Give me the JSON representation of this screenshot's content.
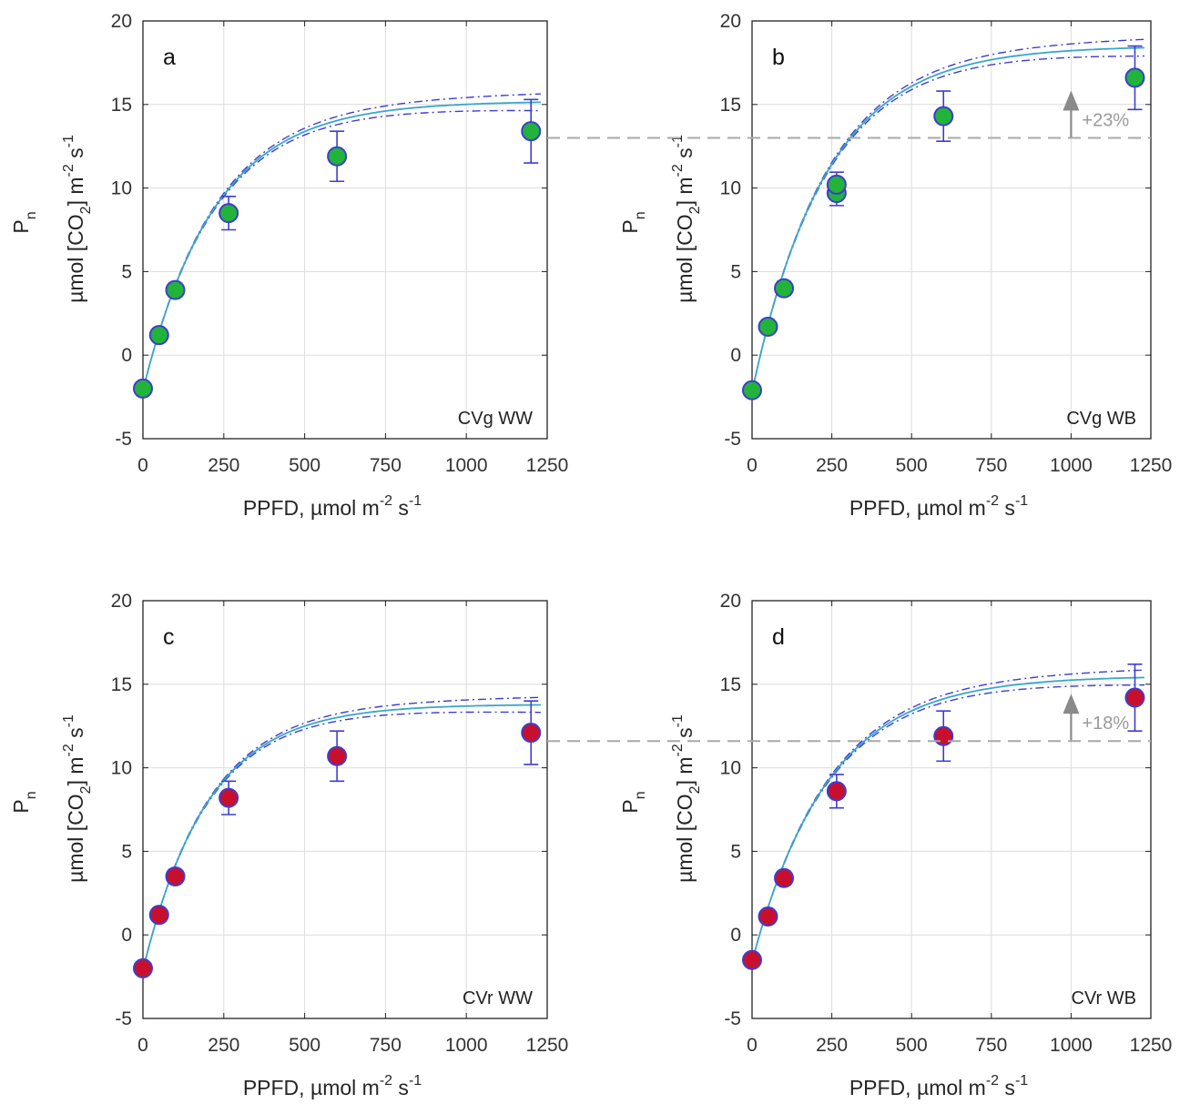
{
  "chart_data": [
    {
      "type": "scatter",
      "panel_letter": "a",
      "label": "CVg WW",
      "marker_color": "#22b33a",
      "x": [
        0,
        50,
        100,
        265,
        600,
        1200
      ],
      "points": [
        {
          "x": 0,
          "y": [
            -2.0
          ],
          "err": 0.3
        },
        {
          "x": 50,
          "y": [
            1.2
          ],
          "err": 0.3
        },
        {
          "x": 100,
          "y": [
            3.9
          ],
          "err": 0.4
        },
        {
          "x": 265,
          "y": [
            8.5
          ],
          "err": 1.0
        },
        {
          "x": 600,
          "y": [
            11.9
          ],
          "err": 1.5
        },
        {
          "x": 1200,
          "y": [
            13.4
          ],
          "err": 1.9
        }
      ],
      "fit": {
        "Pmax": 15.2,
        "Rd": 2.1,
        "k": 0.0045,
        "band": 0.5
      },
      "xticks": [
        "0",
        "250",
        "500",
        "750",
        "1000",
        "1250"
      ],
      "yticks": [
        "-5",
        "0",
        "5",
        "10",
        "15",
        "20"
      ],
      "xlim": [
        0,
        1250
      ],
      "ylim": [
        -5,
        20
      ],
      "xlabel": "PPFD, µmol m",
      "xlabel_sup": "-2",
      "xlabel_tail": " s",
      "xlabel_sup2": "-1",
      "ylabel_main": "µmol [CO",
      "ylabel_sub": "2",
      "ylabel_mid": "] m",
      "ylabel_sup": "-2",
      "ylabel_tail": " s",
      "ylabel_sup2": "-1",
      "ylabel_p": "P",
      "ylabel_p_sub": "n",
      "grid": true
    },
    {
      "type": "scatter",
      "panel_letter": "b",
      "label": "CVg WB",
      "marker_color": "#22b33a",
      "x": [
        0,
        50,
        100,
        265,
        600,
        1200
      ],
      "points": [
        {
          "x": 0,
          "y": [
            -2.1
          ],
          "err": 0.3
        },
        {
          "x": 50,
          "y": [
            1.7
          ],
          "err": 0.3
        },
        {
          "x": 100,
          "y": [
            4.0
          ],
          "err": 0.4
        },
        {
          "x": 265,
          "y": [
            9.7,
            10.2
          ],
          "err": 1.0
        },
        {
          "x": 600,
          "y": [
            14.3
          ],
          "err": 1.5
        },
        {
          "x": 1200,
          "y": [
            16.6
          ],
          "err": 1.9
        }
      ],
      "fit": {
        "Pmax": 18.5,
        "Rd": 2.2,
        "k": 0.0043,
        "band": 0.5
      },
      "reference_y": 13.0,
      "annotation": "+23%",
      "annotation_x": 1000,
      "xticks": [
        "0",
        "250",
        "500",
        "750",
        "1000",
        "1250"
      ],
      "yticks": [
        "-5",
        "0",
        "5",
        "10",
        "15",
        "20"
      ],
      "xlim": [
        0,
        1250
      ],
      "ylim": [
        -5,
        20
      ],
      "xlabel": "PPFD, µmol m",
      "xlabel_sup": "-2",
      "xlabel_tail": " s",
      "xlabel_sup2": "-1",
      "ylabel_main": "µmol [CO",
      "ylabel_sub": "2",
      "ylabel_mid": "] m",
      "ylabel_sup": "-2",
      "ylabel_tail": " s",
      "ylabel_sup2": "-1",
      "ylabel_p": "P",
      "ylabel_p_sub": "n",
      "grid": true
    },
    {
      "type": "scatter",
      "panel_letter": "c",
      "label": "CVr WW",
      "marker_color": "#c8102e",
      "x": [
        0,
        50,
        100,
        265,
        600,
        1200
      ],
      "points": [
        {
          "x": 0,
          "y": [
            -2.0
          ],
          "err": 0.3
        },
        {
          "x": 50,
          "y": [
            1.2
          ],
          "err": 0.3
        },
        {
          "x": 100,
          "y": [
            3.5
          ],
          "err": 0.4
        },
        {
          "x": 265,
          "y": [
            8.2
          ],
          "err": 1.0
        },
        {
          "x": 600,
          "y": [
            10.7
          ],
          "err": 1.5
        },
        {
          "x": 1200,
          "y": [
            12.1
          ],
          "err": 1.9
        }
      ],
      "fit": {
        "Pmax": 13.8,
        "Rd": 2.1,
        "k": 0.005,
        "band": 0.45
      },
      "xticks": [
        "0",
        "250",
        "500",
        "750",
        "1000",
        "1250"
      ],
      "yticks": [
        "-5",
        "0",
        "5",
        "10",
        "15",
        "20"
      ],
      "xlim": [
        0,
        1250
      ],
      "ylim": [
        -5,
        20
      ],
      "xlabel": "PPFD, µmol m",
      "xlabel_sup": "-2",
      "xlabel_tail": " s",
      "xlabel_sup2": "-1",
      "ylabel_main": "µmol [CO",
      "ylabel_sub": "2",
      "ylabel_mid": "] m",
      "ylabel_sup": "-2",
      "ylabel_tail": " s",
      "ylabel_sup2": "-1",
      "ylabel_p": "P",
      "ylabel_p_sub": "n",
      "grid": true
    },
    {
      "type": "scatter",
      "panel_letter": "d",
      "label": "CVr WB",
      "marker_color": "#c8102e",
      "x": [
        0,
        50,
        100,
        265,
        600,
        1200
      ],
      "points": [
        {
          "x": 0,
          "y": [
            -1.5
          ],
          "err": 0.3
        },
        {
          "x": 50,
          "y": [
            1.1
          ],
          "err": 0.3
        },
        {
          "x": 100,
          "y": [
            3.4
          ],
          "err": 0.4
        },
        {
          "x": 265,
          "y": [
            8.6
          ],
          "err": 1.0
        },
        {
          "x": 600,
          "y": [
            11.9
          ],
          "err": 1.5
        },
        {
          "x": 1200,
          "y": [
            14.2
          ],
          "err": 2.0
        }
      ],
      "fit": {
        "Pmax": 15.5,
        "Rd": 1.6,
        "k": 0.0042,
        "band": 0.45
      },
      "reference_y": 11.6,
      "annotation": "+18%",
      "annotation_x": 1000,
      "xticks": [
        "0",
        "250",
        "500",
        "750",
        "1000",
        "1250"
      ],
      "yticks": [
        "-5",
        "0",
        "5",
        "10",
        "15",
        "20"
      ],
      "xlim": [
        0,
        1250
      ],
      "ylim": [
        -5,
        20
      ],
      "xlabel": "PPFD, µmol m",
      "xlabel_sup": "-2",
      "xlabel_tail": " s",
      "xlabel_sup2": "-1",
      "ylabel_main": "µmol [CO",
      "ylabel_sub": "2",
      "ylabel_mid": "] m",
      "ylabel_sup": "-2",
      "ylabel_tail": " s",
      "ylabel_sup2": "-1",
      "ylabel_p": "P",
      "ylabel_p_sub": "n",
      "grid": true
    }
  ],
  "colors": {
    "axis": "#222222",
    "grid": "#dcdcdc",
    "fit_line": "#3aa6c8",
    "confidence_band": "#3d3dcf",
    "error_bar": "#3d3dcf",
    "marker_edge": "#3d3dcf",
    "reference_line": "#a8a8a8",
    "arrow": "#8a8a8a"
  }
}
